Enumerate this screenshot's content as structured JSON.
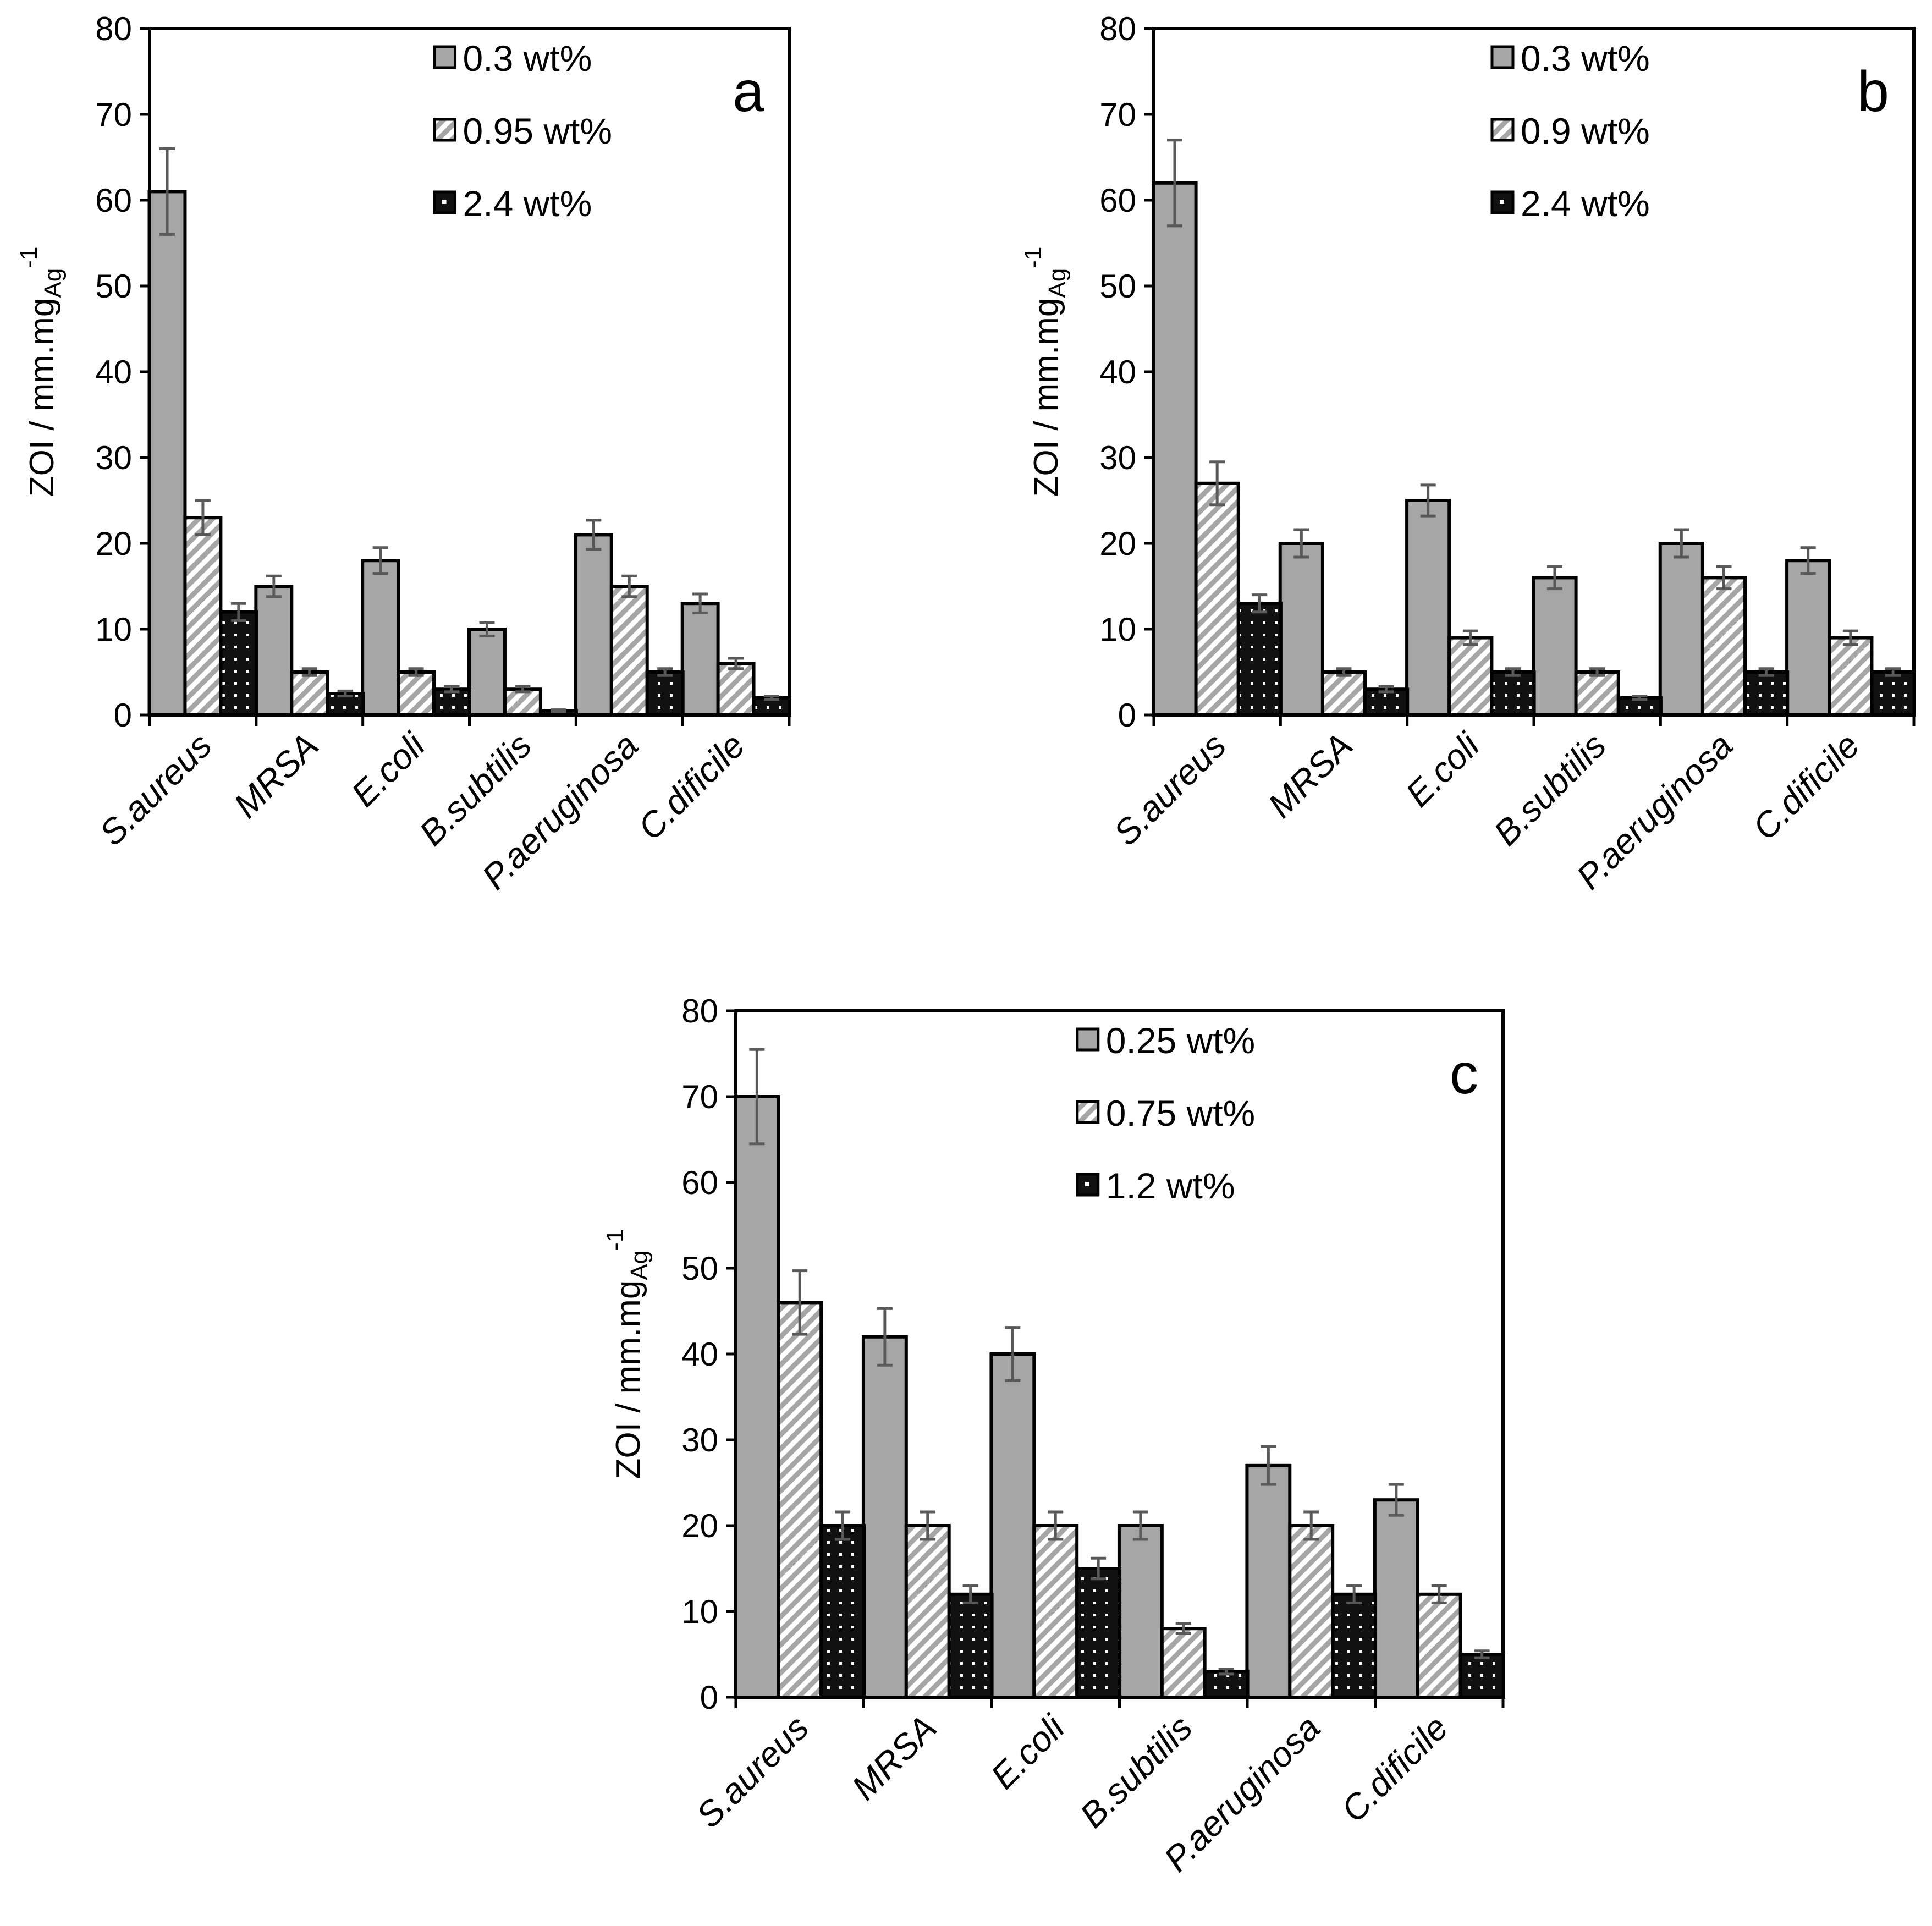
{
  "figure": {
    "colors": {
      "series1": "#a6a6a6",
      "series2_stripe": "#a6a6a6",
      "series3": "#111111",
      "error": "#595959"
    },
    "panels_note": "three grouped bar charts of zone of inhibition"
  },
  "chart_data": [
    {
      "type": "bar",
      "label": "a",
      "ylabel": "ZOI / mm.mg",
      "ylabel_sub": "Ag",
      "ylabel_sup": "-1",
      "ylim": [
        0,
        80
      ],
      "yticks": [
        "0",
        "10",
        "20",
        "30",
        "40",
        "50",
        "60",
        "70",
        "80"
      ],
      "categories": [
        "S.aureus",
        "MRSA",
        "E.coli",
        "B.subtilis",
        "P.aeruginosa",
        "C.dificile"
      ],
      "series": [
        {
          "name": "0.3 wt%",
          "values": [
            61,
            15,
            18,
            10,
            21,
            13
          ],
          "errors": [
            5,
            1.2,
            1.5,
            0.8,
            1.7,
            1.1
          ]
        },
        {
          "name": "0.95 wt%",
          "values": [
            23,
            5,
            5,
            3,
            15,
            6
          ],
          "errors": [
            2,
            0.4,
            0.4,
            0.3,
            1.2,
            0.6
          ]
        },
        {
          "name": "2.4 wt%",
          "values": [
            12,
            2.5,
            3,
            0.5,
            5,
            2
          ],
          "errors": [
            1,
            0.3,
            0.3,
            0.1,
            0.4,
            0.2
          ]
        }
      ]
    },
    {
      "type": "bar",
      "label": "b",
      "ylabel": "ZOI / mm.mg",
      "ylabel_sub": "Ag",
      "ylabel_sup": "-1",
      "ylim": [
        0,
        80
      ],
      "yticks": [
        "0",
        "10",
        "20",
        "30",
        "40",
        "50",
        "60",
        "70",
        "80"
      ],
      "categories": [
        "S.aureus",
        "MRSA",
        "E.coli",
        "B.subtilis",
        "P.aeruginosa",
        "C.dificile"
      ],
      "series": [
        {
          "name": "0.3 wt%",
          "values": [
            62,
            20,
            25,
            16,
            20,
            18
          ],
          "errors": [
            5,
            1.6,
            1.8,
            1.3,
            1.6,
            1.5
          ]
        },
        {
          "name": "0.9 wt%",
          "values": [
            27,
            5,
            9,
            5,
            16,
            9
          ],
          "errors": [
            2.5,
            0.4,
            0.8,
            0.4,
            1.3,
            0.8
          ]
        },
        {
          "name": "2.4 wt%",
          "values": [
            13,
            3,
            5,
            2,
            5,
            5
          ],
          "errors": [
            1,
            0.3,
            0.4,
            0.2,
            0.4,
            0.4
          ]
        }
      ]
    },
    {
      "type": "bar",
      "label": "c",
      "ylabel": "ZOI / mm.mg",
      "ylabel_sub": "Ag",
      "ylabel_sup": "-1",
      "ylim": [
        0,
        80
      ],
      "yticks": [
        "0",
        "10",
        "20",
        "30",
        "40",
        "50",
        "60",
        "70",
        "80"
      ],
      "categories": [
        "S.aureus",
        "MRSA",
        "E.coli",
        "B.subtilis",
        "P.aeruginosa",
        "C.dificile"
      ],
      "series": [
        {
          "name": "0.25 wt%",
          "values": [
            70,
            42,
            40,
            20,
            27,
            23
          ],
          "errors": [
            5.5,
            3.3,
            3.1,
            1.6,
            2.2,
            1.8
          ]
        },
        {
          "name": "0.75 wt%",
          "values": [
            46,
            20,
            20,
            8,
            20,
            12
          ],
          "errors": [
            3.7,
            1.6,
            1.6,
            0.6,
            1.6,
            1
          ]
        },
        {
          "name": "1.2 wt%",
          "values": [
            20,
            12,
            15,
            3,
            12,
            5
          ],
          "errors": [
            1.6,
            1,
            1.2,
            0.3,
            1,
            0.4
          ]
        }
      ]
    }
  ]
}
